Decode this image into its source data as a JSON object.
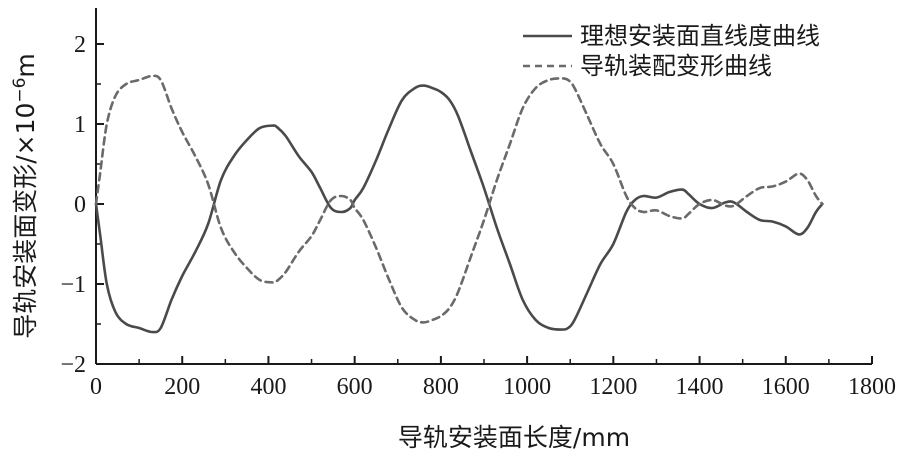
{
  "chart_data": {
    "type": "line",
    "xlabel": "导轨安装面长度/mm",
    "ylabel": "导轨安装面变形/×10",
    "ylabel_exponent": "−6",
    "ylabel_unit": "m",
    "xlim": [
      0,
      1800
    ],
    "ylim": [
      -2,
      2.5
    ],
    "x_ticks": [
      0,
      200,
      400,
      600,
      800,
      1000,
      1200,
      1400,
      1600,
      1800
    ],
    "y_ticks": [
      -2,
      -1,
      0,
      1,
      2
    ],
    "x_tick_labels": [
      "0",
      "200",
      "400",
      "600",
      "800",
      "1000",
      "1200",
      "1400",
      "1600",
      "1800"
    ],
    "y_tick_labels": [
      "−2",
      "−1",
      "0",
      "1",
      "2"
    ],
    "legend_position": "top-right",
    "series": [
      {
        "name": "理想安装面直线度曲线",
        "style": "solid",
        "color": "#4a4a4a",
        "x": [
          0,
          10,
          25,
          45,
          70,
          100,
          130,
          150,
          175,
          200,
          230,
          260,
          290,
          320,
          350,
          380,
          410,
          420,
          440,
          470,
          500,
          520,
          545,
          570,
          590,
          600,
          620,
          650,
          680,
          710,
          740,
          760,
          780,
          800,
          820,
          840,
          870,
          900,
          930,
          960,
          990,
          1020,
          1050,
          1080,
          1095,
          1110,
          1140,
          1170,
          1200,
          1230,
          1250,
          1270,
          1300,
          1330,
          1360,
          1375,
          1400,
          1430,
          1460,
          1480,
          1510,
          1540,
          1570,
          1600,
          1630,
          1650,
          1670,
          1685
        ],
        "y": [
          0,
          -0.4,
          -1.0,
          -1.35,
          -1.5,
          -1.55,
          -1.6,
          -1.55,
          -1.2,
          -0.9,
          -0.6,
          -0.25,
          0.3,
          0.6,
          0.8,
          0.95,
          0.98,
          0.96,
          0.85,
          0.6,
          0.4,
          0.2,
          -0.05,
          -0.1,
          -0.05,
          0.05,
          0.2,
          0.55,
          0.95,
          1.3,
          1.45,
          1.48,
          1.45,
          1.4,
          1.3,
          1.1,
          0.65,
          0.2,
          -0.3,
          -0.75,
          -1.2,
          -1.45,
          -1.55,
          -1.57,
          -1.55,
          -1.45,
          -1.1,
          -0.75,
          -0.5,
          -0.1,
          0.05,
          0.1,
          0.08,
          0.15,
          0.18,
          0.12,
          0.0,
          -0.05,
          0.02,
          0.02,
          -0.1,
          -0.2,
          -0.22,
          -0.28,
          -0.38,
          -0.3,
          -0.1,
          0.0
        ]
      },
      {
        "name": "导轨装配变形曲线",
        "style": "dashed",
        "color": "#6a6a6a",
        "x": [
          0,
          10,
          25,
          45,
          70,
          100,
          130,
          150,
          175,
          200,
          230,
          260,
          290,
          320,
          350,
          380,
          410,
          420,
          440,
          470,
          500,
          520,
          545,
          570,
          590,
          600,
          620,
          650,
          680,
          710,
          740,
          760,
          780,
          800,
          820,
          840,
          870,
          900,
          930,
          960,
          990,
          1020,
          1050,
          1080,
          1095,
          1110,
          1140,
          1170,
          1200,
          1230,
          1250,
          1270,
          1300,
          1330,
          1360,
          1375,
          1400,
          1430,
          1460,
          1480,
          1510,
          1540,
          1570,
          1600,
          1630,
          1650,
          1670,
          1685
        ],
        "y": [
          0,
          0.4,
          1.0,
          1.35,
          1.5,
          1.55,
          1.6,
          1.55,
          1.2,
          0.9,
          0.6,
          0.25,
          -0.3,
          -0.6,
          -0.8,
          -0.95,
          -0.98,
          -0.96,
          -0.85,
          -0.6,
          -0.4,
          -0.2,
          0.05,
          0.1,
          0.05,
          -0.05,
          -0.2,
          -0.55,
          -0.95,
          -1.3,
          -1.45,
          -1.48,
          -1.45,
          -1.4,
          -1.3,
          -1.1,
          -0.65,
          -0.2,
          0.3,
          0.75,
          1.2,
          1.45,
          1.55,
          1.57,
          1.55,
          1.45,
          1.1,
          0.75,
          0.5,
          0.1,
          -0.05,
          -0.1,
          -0.08,
          -0.15,
          -0.18,
          -0.12,
          0.0,
          0.05,
          -0.02,
          -0.02,
          0.1,
          0.2,
          0.22,
          0.28,
          0.38,
          0.3,
          0.1,
          0.0
        ]
      }
    ]
  }
}
